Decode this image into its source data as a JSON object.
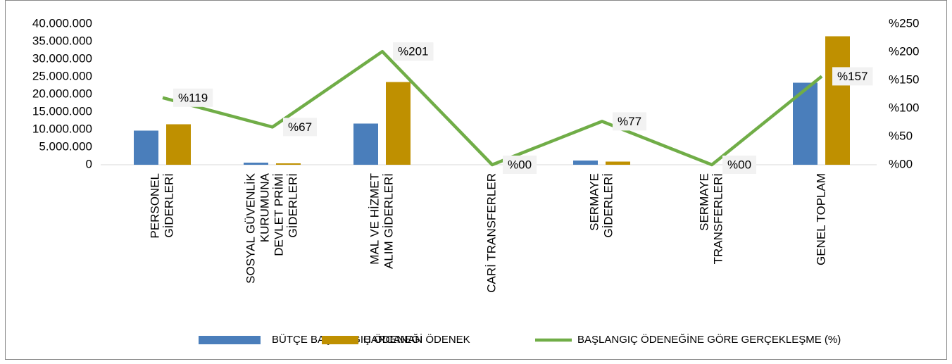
{
  "chart_data": {
    "type": "bar-line",
    "categories": [
      [
        "PERSONEL",
        "GİDERLERİ"
      ],
      [
        "SOSYAL GÜVENLİK",
        "KURUMUNA",
        "DEVLET PRİMİ",
        "GİDERLERİ"
      ],
      [
        "MAL VE HİZMET",
        "ALIM GİDERLERİ"
      ],
      [
        "CARİ TRANSFERLER"
      ],
      [
        "SERMAYE",
        "GİDERLERİ"
      ],
      [
        "SERMAYE",
        "TRANSFERLERİ"
      ],
      [
        "GENEL TOPLAM"
      ]
    ],
    "series": [
      {
        "name": "BÜTÇE BAŞLANGIÇ ÖDENEĞİ",
        "type": "bar",
        "color": "#4a7ebb",
        "values": [
          9700000,
          600000,
          11700000,
          0,
          1200000,
          0,
          23300000
        ]
      },
      {
        "name": "HARCANAN ÖDENEK",
        "type": "bar",
        "color": "#bf9000",
        "values": [
          11500000,
          400000,
          23500000,
          0,
          900000,
          0,
          36500000
        ]
      },
      {
        "name": "BAŞLANGIÇ ÖDENEĞİNE GÖRE GERÇEKLEŞME (%)",
        "type": "line",
        "axis": "y2",
        "color": "#70ad47",
        "values": [
          119,
          67,
          201,
          0,
          77,
          0,
          157
        ],
        "value_labels": [
          "%119",
          "%67",
          "%201",
          "%00",
          "%77",
          "%00",
          "%157"
        ]
      }
    ],
    "ylim": [
      0,
      40000000
    ],
    "yticks": [
      0,
      {
        "value": 5000000,
        "label": "5.000.000"
      },
      {
        "value": 10000000,
        "label": "10.000.000"
      },
      {
        "value": 15000000,
        "label": "15.000.000"
      },
      {
        "value": 20000000,
        "label": "20.000.000"
      },
      {
        "value": 25000000,
        "label": "25.000.000"
      },
      {
        "value": 30000000,
        "label": "30.000.000"
      },
      {
        "value": 35000000,
        "label": "35.000.000"
      },
      {
        "value": 40000000,
        "label": "40.000.000"
      }
    ],
    "y2lim": [
      0,
      250
    ],
    "y2ticks": [
      {
        "value": 0,
        "label": "%00"
      },
      {
        "value": 50,
        "label": "%50"
      },
      {
        "value": 100,
        "label": "%100"
      },
      {
        "value": 150,
        "label": "%150"
      },
      {
        "value": 200,
        "label": "%200"
      },
      {
        "value": 250,
        "label": "%250"
      }
    ],
    "legend": "bottom"
  }
}
